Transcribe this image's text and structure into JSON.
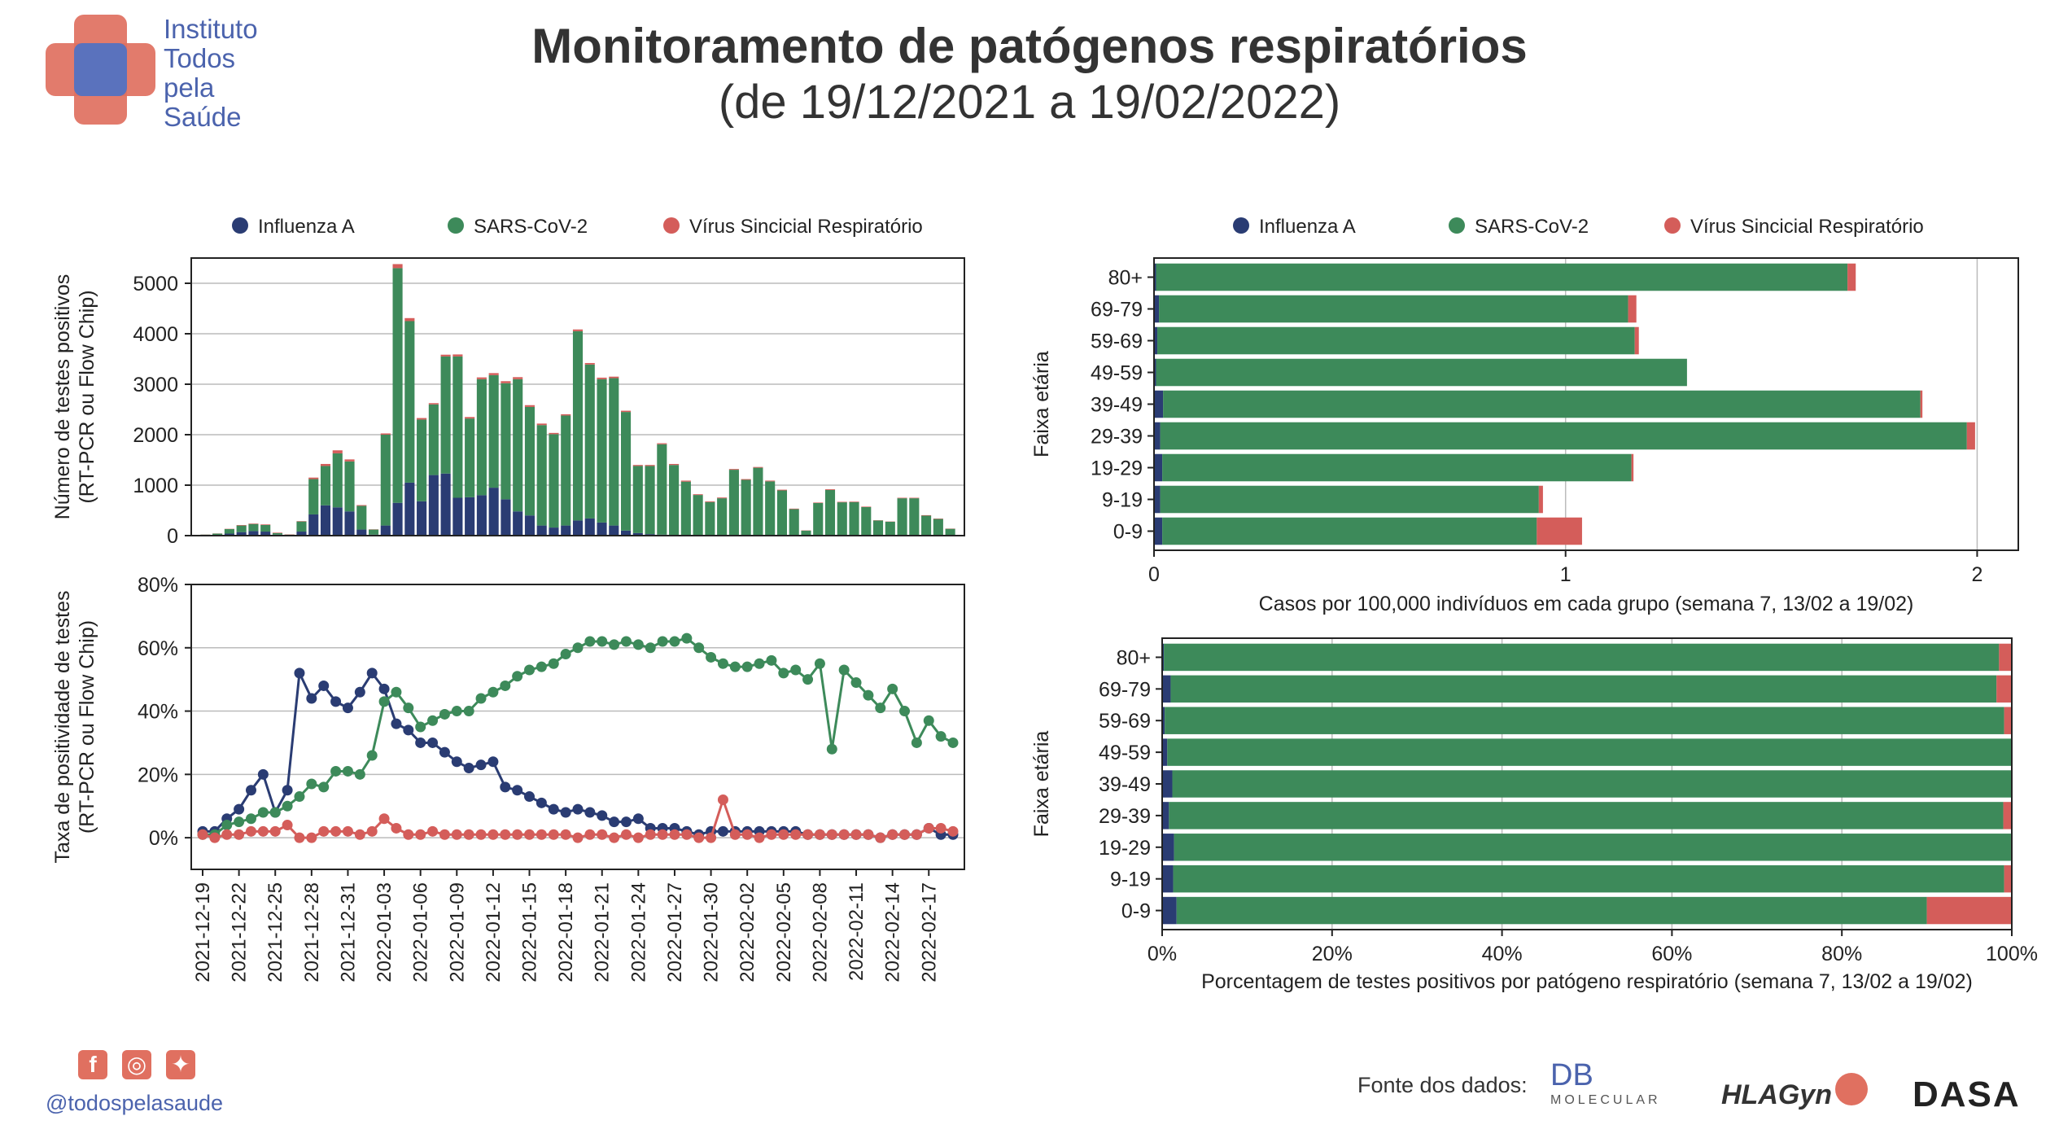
{
  "logo": {
    "lines": [
      "Instituto",
      "Todos",
      "pela",
      "Saúde"
    ]
  },
  "header": {
    "title": "Monitoramento de patógenos respiratórios",
    "subtitle": "(de 19/12/2021 a 19/02/2022)"
  },
  "colors": {
    "influenza": "#2a3c73",
    "sars": "#3d8a5a",
    "vsr": "#d45d5a",
    "grid": "#bbbbbb"
  },
  "legend": {
    "items": [
      "Influenza A",
      "SARS-CoV-2",
      "Vírus Sincicial Respiratório"
    ]
  },
  "chart_data": [
    {
      "type": "bar",
      "stacked": true,
      "ylabel": "Número de testes positivos\n(RT-PCR ou Flow Chip)",
      "ylim": [
        0,
        5500
      ],
      "yticks": [
        0,
        1000,
        2000,
        3000,
        4000,
        5000
      ],
      "x": [
        "2021-12-19",
        "2021-12-20",
        "2021-12-21",
        "2021-12-22",
        "2021-12-23",
        "2021-12-24",
        "2021-12-25",
        "2021-12-26",
        "2021-12-27",
        "2021-12-28",
        "2021-12-29",
        "2021-12-30",
        "2021-12-31",
        "2022-01-01",
        "2022-01-02",
        "2022-01-03",
        "2022-01-04",
        "2022-01-05",
        "2022-01-06",
        "2022-01-07",
        "2022-01-08",
        "2022-01-09",
        "2022-01-10",
        "2022-01-11",
        "2022-01-12",
        "2022-01-13",
        "2022-01-14",
        "2022-01-15",
        "2022-01-16",
        "2022-01-17",
        "2022-01-18",
        "2022-01-19",
        "2022-01-20",
        "2022-01-21",
        "2022-01-22",
        "2022-01-23",
        "2022-01-24",
        "2022-01-25",
        "2022-01-26",
        "2022-01-27",
        "2022-01-28",
        "2022-01-29",
        "2022-01-30",
        "2022-01-31",
        "2022-02-01",
        "2022-02-02",
        "2022-02-03",
        "2022-02-04",
        "2022-02-05",
        "2022-02-06",
        "2022-02-07",
        "2022-02-08",
        "2022-02-09",
        "2022-02-10",
        "2022-02-11",
        "2022-02-12",
        "2022-02-13",
        "2022-02-14",
        "2022-02-15",
        "2022-02-16",
        "2022-02-17",
        "2022-02-18",
        "2022-02-19"
      ],
      "series": [
        {
          "name": "Influenza A",
          "values": [
            5,
            10,
            40,
            70,
            90,
            80,
            20,
            8,
            80,
            420,
            600,
            560,
            480,
            120,
            20,
            200,
            650,
            1050,
            680,
            1200,
            1230,
            750,
            760,
            800,
            950,
            720,
            480,
            400,
            200,
            160,
            200,
            300,
            340,
            260,
            200,
            100,
            50,
            30,
            20,
            10,
            10,
            5,
            5,
            10,
            5,
            5,
            5,
            5,
            5,
            5,
            5,
            5,
            5,
            5,
            5,
            5,
            5,
            5,
            5,
            5,
            5,
            5,
            5
          ]
        },
        {
          "name": "SARS-CoV-2",
          "values": [
            15,
            30,
            90,
            130,
            140,
            130,
            30,
            12,
            200,
            700,
            780,
            1070,
            990,
            470,
            100,
            1800,
            4650,
            3200,
            1620,
            1400,
            2320,
            2800,
            1560,
            2300,
            2230,
            2300,
            2620,
            2150,
            1990,
            1850,
            2180,
            3750,
            3050,
            2840,
            2920,
            2350,
            1330,
            1350,
            1790,
            1390,
            1060,
            800,
            660,
            730,
            1300,
            1100,
            1340,
            1070,
            890,
            520,
            95,
            640,
            900,
            655,
            660,
            560,
            295,
            270,
            735,
            735,
            390,
            325,
            130
          ]
        },
        {
          "name": "Vírus Sincicial Respiratório",
          "values": [
            2,
            3,
            5,
            10,
            10,
            12,
            10,
            5,
            8,
            30,
            40,
            60,
            40,
            15,
            5,
            25,
            80,
            60,
            30,
            25,
            35,
            40,
            30,
            35,
            40,
            40,
            40,
            35,
            30,
            25,
            25,
            35,
            30,
            30,
            30,
            25,
            20,
            20,
            20,
            20,
            20,
            15,
            15,
            15,
            15,
            15,
            15,
            15,
            15,
            10,
            5,
            10,
            15,
            10,
            10,
            10,
            5,
            5,
            10,
            10,
            10,
            8,
            5
          ]
        }
      ]
    },
    {
      "type": "line",
      "ylabel": "Taxa de positividade de testes\n(RT-PCR ou Flow Chip)",
      "ylim": [
        -10,
        80
      ],
      "yticks": [
        0,
        20,
        40,
        60,
        80
      ],
      "yticklabels": [
        "0%",
        "20%",
        "40%",
        "60%",
        "80%"
      ],
      "xticklabels": [
        "2021-12-19",
        "2021-12-22",
        "2021-12-25",
        "2021-12-28",
        "2021-12-31",
        "2022-01-03",
        "2022-01-06",
        "2022-01-09",
        "2022-01-12",
        "2022-01-15",
        "2022-01-18",
        "2022-01-21",
        "2022-01-24",
        "2022-01-27",
        "2022-01-30",
        "2022-02-02",
        "2022-02-05",
        "2022-02-08",
        "2022-02-11",
        "2022-02-14",
        "2022-02-17"
      ],
      "series": [
        {
          "name": "Influenza A",
          "values": [
            2,
            2,
            6,
            9,
            15,
            20,
            8,
            15,
            52,
            44,
            48,
            43,
            41,
            46,
            52,
            47,
            36,
            34,
            30,
            30,
            27,
            24,
            22,
            23,
            24,
            16,
            15,
            13,
            11,
            9,
            8,
            9,
            8,
            7,
            5,
            5,
            6,
            3,
            3,
            3,
            2,
            1,
            2,
            2,
            2,
            2,
            2,
            2,
            2,
            2,
            1,
            1,
            1,
            1,
            1,
            1,
            0,
            1,
            1,
            1,
            3,
            1,
            1
          ]
        },
        {
          "name": "SARS-CoV-2",
          "values": [
            1,
            1,
            4,
            5,
            6,
            8,
            8,
            10,
            13,
            17,
            16,
            21,
            21,
            20,
            26,
            43,
            46,
            41,
            35,
            37,
            39,
            40,
            40,
            44,
            46,
            48,
            51,
            53,
            54,
            55,
            58,
            60,
            62,
            62,
            61,
            62,
            61,
            60,
            62,
            62,
            63,
            60,
            57,
            55,
            54,
            54,
            55,
            56,
            52,
            53,
            50,
            55,
            28,
            53,
            49,
            45,
            41,
            47,
            40,
            30,
            37,
            32,
            30
          ]
        },
        {
          "name": "Vírus Sincicial Respiratório",
          "values": [
            1,
            0,
            1,
            1,
            2,
            2,
            2,
            4,
            0,
            0,
            2,
            2,
            2,
            1,
            2,
            6,
            3,
            1,
            1,
            2,
            1,
            1,
            1,
            1,
            1,
            1,
            1,
            1,
            1,
            1,
            1,
            0,
            1,
            1,
            0,
            1,
            0,
            1,
            1,
            1,
            1,
            0,
            0,
            12,
            1,
            1,
            0,
            1,
            1,
            1,
            1,
            1,
            1,
            1,
            1,
            1,
            0,
            1,
            1,
            1,
            3,
            3,
            2
          ]
        }
      ]
    },
    {
      "type": "bar",
      "orientation": "horizontal",
      "stacked": true,
      "xlabel": "Casos por 100,000 indivíduos em cada grupo (semana 7, 13/02 a 19/02)",
      "ylabel": "Faixa etária",
      "xlim": [
        0,
        2.1
      ],
      "xticks": [
        0,
        1,
        2
      ],
      "categories": [
        "80+",
        "69-79",
        "59-69",
        "49-59",
        "39-49",
        "29-39",
        "19-29",
        "9-19",
        "0-9"
      ],
      "series": [
        {
          "name": "Influenza A",
          "values": [
            0.005,
            0.012,
            0.008,
            0.005,
            0.022,
            0.015,
            0.02,
            0.015,
            0.02
          ]
        },
        {
          "name": "SARS-CoV-2",
          "values": [
            1.68,
            1.14,
            1.16,
            1.29,
            1.84,
            1.96,
            1.14,
            0.92,
            0.91
          ]
        },
        {
          "name": "Vírus Sincicial Respiratório",
          "values": [
            0.02,
            0.02,
            0.01,
            0.0,
            0.005,
            0.02,
            0.005,
            0.01,
            0.11
          ]
        }
      ]
    },
    {
      "type": "bar",
      "orientation": "horizontal",
      "stacked": true,
      "xlabel": "Porcentagem de testes positivos por patógeno respiratório (semana 7, 13/02 a 19/02)",
      "ylabel": "Faixa etária",
      "xlim": [
        0,
        100
      ],
      "xticks": [
        0,
        20,
        40,
        60,
        80,
        100
      ],
      "xticklabels": [
        "0%",
        "20%",
        "40%",
        "60%",
        "80%",
        "100%"
      ],
      "categories": [
        "80+",
        "69-79",
        "59-69",
        "49-59",
        "39-49",
        "29-39",
        "19-29",
        "9-19",
        "0-9"
      ],
      "series": [
        {
          "name": "Influenza A",
          "values": [
            0.2,
            1.0,
            0.3,
            0.6,
            1.2,
            0.8,
            1.4,
            1.3,
            1.7
          ]
        },
        {
          "name": "SARS-CoV-2",
          "values": [
            98.3,
            97.2,
            98.8,
            99.4,
            98.8,
            98.2,
            98.5,
            97.8,
            88.3
          ]
        },
        {
          "name": "Vírus Sincicial Respiratório",
          "values": [
            1.5,
            1.8,
            0.9,
            0.0,
            0.0,
            1.0,
            0.1,
            0.9,
            10.0
          ]
        }
      ]
    }
  ],
  "footer": {
    "handle": "@todospelasaude",
    "source_label": "Fonte dos dados:",
    "sponsors": [
      "DB",
      "MOLECULAR",
      "HLAGyn",
      "DASA"
    ]
  }
}
